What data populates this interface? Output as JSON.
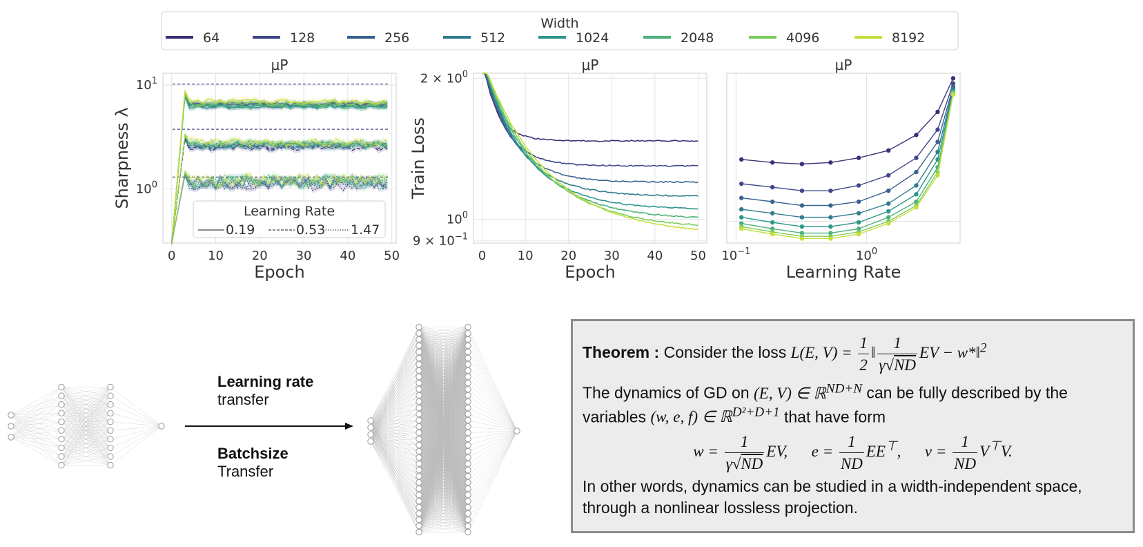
{
  "legend_top": {
    "title": "Width",
    "entries": [
      {
        "label": "64",
        "color": "#3e2f78"
      },
      {
        "label": "128",
        "color": "#41468c"
      },
      {
        "label": "256",
        "color": "#39638f"
      },
      {
        "label": "512",
        "color": "#307c8c"
      },
      {
        "label": "1024",
        "color": "#2c978a"
      },
      {
        "label": "2048",
        "color": "#4db27c"
      },
      {
        "label": "4096",
        "color": "#7ccc5c"
      },
      {
        "label": "8192",
        "color": "#c4df3a"
      }
    ]
  },
  "chart_data": [
    {
      "type": "line",
      "title": "μP",
      "xlabel": "Epoch",
      "ylabel": "Sharpness  λ",
      "yscale": "log",
      "xlim": [
        -2,
        51
      ],
      "ylim": [
        0.3,
        13
      ],
      "xticks": [
        "0",
        "10",
        "20",
        "30",
        "40",
        "50"
      ],
      "yticks": [
        {
          "value": 10,
          "base": "10",
          "exp": "1"
        },
        {
          "value": 1,
          "base": "10",
          "exp": "0"
        }
      ],
      "grid": true,
      "reference_lines": [
        10.2,
        3.75,
        1.3
      ],
      "legend": {
        "title": "Learning Rate",
        "placement": "lower",
        "entries": [
          "0.19",
          "0.53",
          "1.47"
        ]
      },
      "series_groups": [
        {
          "learning_rate": "0.19",
          "style": "solid",
          "plateau": [
            6.5,
            6.5,
            6.4,
            6.3,
            6.2,
            6.2,
            6.6,
            7.0
          ]
        },
        {
          "learning_rate": "0.53",
          "style": "dashed",
          "plateau": [
            2.5,
            2.55,
            2.6,
            2.65,
            2.7,
            2.7,
            2.75,
            2.8
          ]
        },
        {
          "learning_rate": "1.47",
          "style": "dotted",
          "plateau": [
            1.12,
            1.14,
            1.15,
            1.17,
            1.18,
            1.19,
            1.2,
            1.22
          ]
        }
      ]
    },
    {
      "type": "line",
      "title": "μP",
      "xlabel": "Epoch",
      "ylabel": "Train Loss",
      "yscale": "log",
      "xlim": [
        -2,
        52
      ],
      "ylim": [
        0.89,
        2.05
      ],
      "xticks": [
        "0",
        "10",
        "20",
        "30",
        "40",
        "50"
      ],
      "yticks": [
        {
          "value": 2,
          "base": "2 × 10",
          "exp": "0"
        },
        {
          "value": 1,
          "base": "10",
          "exp": "0"
        },
        {
          "value": 0.9,
          "base": "9 × 10",
          "exp": "−1"
        }
      ],
      "grid": true,
      "series": [
        {
          "name": "64",
          "final": 1.47
        },
        {
          "name": "128",
          "final": 1.3
        },
        {
          "name": "256",
          "final": 1.2
        },
        {
          "name": "512",
          "final": 1.12
        },
        {
          "name": "1024",
          "final": 1.05
        },
        {
          "name": "2048",
          "final": 1.0
        },
        {
          "name": "4096",
          "final": 0.955
        },
        {
          "name": "8192",
          "final": 0.925
        }
      ]
    },
    {
      "type": "line",
      "title": "μP",
      "xlabel": "Learning Rate",
      "ylabel": "",
      "xscale": "log",
      "yscale": "log",
      "xlim": [
        0.085,
        5.2
      ],
      "ylim": [
        0.9,
        2.05
      ],
      "xticks": [
        {
          "value": 0.1,
          "base": "10",
          "exp": "−1"
        },
        {
          "value": 1,
          "base": "10",
          "exp": "0"
        }
      ],
      "grid": true,
      "x": [
        0.11,
        0.19,
        0.32,
        0.53,
        0.87,
        1.47,
        2.4,
        3.5,
        4.6
      ],
      "series": [
        {
          "name": "64",
          "values": [
            1.35,
            1.33,
            1.32,
            1.33,
            1.36,
            1.41,
            1.52,
            1.7,
            2.0
          ]
        },
        {
          "name": "128",
          "values": [
            1.2,
            1.18,
            1.16,
            1.16,
            1.19,
            1.25,
            1.36,
            1.56,
            1.95
          ]
        },
        {
          "name": "256",
          "values": [
            1.12,
            1.1,
            1.08,
            1.08,
            1.1,
            1.16,
            1.27,
            1.47,
            1.92
          ]
        },
        {
          "name": "512",
          "values": [
            1.06,
            1.04,
            1.02,
            1.02,
            1.04,
            1.09,
            1.19,
            1.4,
            1.9
          ]
        },
        {
          "name": "1024",
          "values": [
            1.02,
            0.995,
            0.975,
            0.975,
            0.995,
            1.05,
            1.14,
            1.35,
            1.88
          ]
        },
        {
          "name": "2048",
          "values": [
            0.99,
            0.965,
            0.945,
            0.945,
            0.965,
            1.02,
            1.1,
            1.3,
            1.87
          ]
        },
        {
          "name": "4096",
          "values": [
            0.975,
            0.95,
            0.93,
            0.93,
            0.95,
            1.0,
            1.08,
            1.27,
            1.86
          ]
        },
        {
          "name": "8192",
          "values": [
            0.965,
            0.94,
            0.92,
            0.92,
            0.94,
            0.99,
            1.07,
            1.25,
            1.85
          ]
        }
      ]
    }
  ],
  "diagram": {
    "label_lr_bold": "Learning rate",
    "label_lr": "transfer",
    "label_bs_bold": "Batchsize",
    "label_bs": "Transfer"
  },
  "theorem": {
    "heading": "Theorem :",
    "intro": "Consider the loss",
    "p2_a": "The dynamics of GD on",
    "p2_b": "can be fully described by the",
    "p3_a": "variables",
    "p3_b": "that have form",
    "closing_1": "In other words, dynamics can be studied in a width-independent space,",
    "closing_2": "through a nonlinear lossless projection."
  }
}
